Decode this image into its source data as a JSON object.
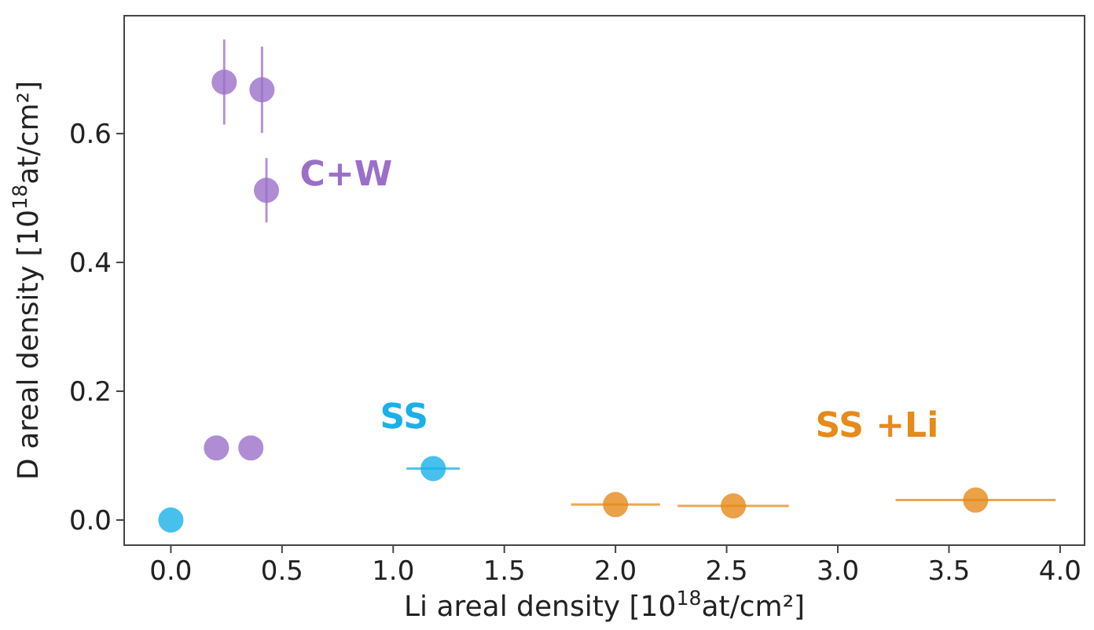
{
  "chart_data": {
    "type": "scatter",
    "xlabel": "Li areal density [10$^{18}$at/cm²]",
    "ylabel": "D areal density [10$^{18}$at/cm²]",
    "xlim": [
      -0.21,
      4.11
    ],
    "ylim": [
      -0.039,
      0.783
    ],
    "xticks": [
      {
        "value": 0,
        "label": "0.0"
      },
      {
        "value": 0.5,
        "label": "0.5"
      },
      {
        "value": 1,
        "label": "1.0"
      },
      {
        "value": 1.5,
        "label": "1.5"
      },
      {
        "value": 2,
        "label": "2.0"
      },
      {
        "value": 2.5,
        "label": "2.5"
      },
      {
        "value": 3,
        "label": "3.0"
      },
      {
        "value": 3.5,
        "label": "3.5"
      },
      {
        "value": 4,
        "label": "4.0"
      }
    ],
    "yticks": [
      {
        "value": 0,
        "label": "0.0"
      },
      {
        "value": 0.2,
        "label": "0.2"
      },
      {
        "value": 0.4,
        "label": "0.4"
      },
      {
        "value": 0.6,
        "label": "0.6"
      }
    ],
    "grid": false,
    "legend": false,
    "marker": "circle",
    "series": [
      {
        "name": "C+W",
        "color": "#9b6fc9",
        "x": [
          0.24,
          0.41,
          0.43,
          0.205,
          0.36
        ],
        "values": [
          0.68,
          0.668,
          0.512,
          0.112,
          0.112
        ],
        "errors": [
          0.066,
          0.067,
          0.05,
          null,
          null
        ]
      },
      {
        "name": "SS",
        "color": "#1ab0e8",
        "x": [
          0,
          1.18
        ],
        "values": [
          0,
          0.08
        ],
        "xerrors": [
          null,
          0.12
        ]
      },
      {
        "name": "SS +Li",
        "color": "#e68a1a",
        "x": [
          2.0,
          2.53,
          3.62
        ],
        "values": [
          0.024,
          0.022,
          0.031
        ],
        "xerrors": [
          0.2,
          0.25,
          0.36
        ]
      }
    ]
  }
}
